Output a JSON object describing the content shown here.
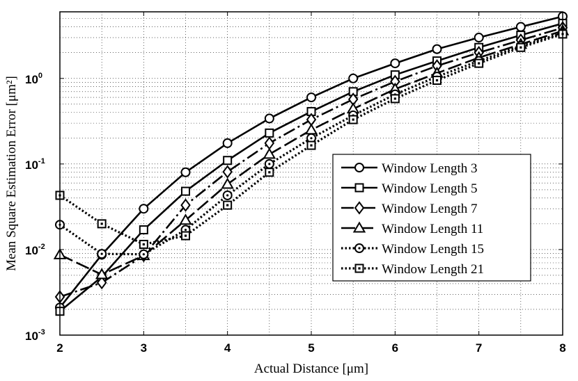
{
  "chart_data": {
    "type": "line",
    "xlabel": "Actual Distance [μm]",
    "ylabel": "Mean Square Estimation Error [μm²]",
    "y_scale": "log",
    "xlim": [
      2,
      8
    ],
    "ylim": [
      0.001,
      6
    ],
    "grid": true,
    "legend_position": "right",
    "x_ticks": [
      "2",
      "3",
      "4",
      "5",
      "6",
      "7",
      "8"
    ],
    "y_ticks": [
      {
        "base": "10",
        "exp": "-3",
        "value": 0.001
      },
      {
        "base": "10",
        "exp": "-2",
        "value": 0.01
      },
      {
        "base": "10",
        "exp": "-1",
        "value": 0.1
      },
      {
        "base": "10",
        "exp": "0",
        "value": 1
      }
    ],
    "x": [
      2,
      2.5,
      3,
      3.5,
      4,
      4.5,
      5,
      5.5,
      6,
      6.5,
      7,
      7.5,
      8
    ],
    "series": [
      {
        "name": "Window Length 3",
        "marker": "circle",
        "dash": "solid",
        "values": [
          0.0021,
          0.0087,
          0.03,
          0.08,
          0.175,
          0.34,
          0.6,
          1.0,
          1.5,
          2.2,
          3.0,
          4.0,
          5.3
        ]
      },
      {
        "name": "Window Length 5",
        "marker": "square",
        "dash": "solid",
        "values": [
          0.0019,
          0.0048,
          0.017,
          0.048,
          0.11,
          0.23,
          0.41,
          0.7,
          1.1,
          1.6,
          2.3,
          3.2,
          4.4
        ]
      },
      {
        "name": "Window Length 7",
        "marker": "diamond",
        "dash": "dashdot",
        "values": [
          0.0028,
          0.0041,
          0.0085,
          0.033,
          0.081,
          0.175,
          0.33,
          0.57,
          0.92,
          1.4,
          2.0,
          2.8,
          3.9
        ]
      },
      {
        "name": "Window Length 11",
        "marker": "triangle",
        "dash": "longdash",
        "values": [
          0.0087,
          0.0051,
          0.0085,
          0.022,
          0.058,
          0.13,
          0.25,
          0.44,
          0.75,
          1.15,
          1.75,
          2.5,
          3.6
        ]
      },
      {
        "name": "Window Length 15",
        "marker": "circle-dot",
        "dash": "dotted",
        "values": [
          0.0195,
          0.0089,
          0.0088,
          0.017,
          0.043,
          0.1,
          0.2,
          0.37,
          0.65,
          1.05,
          1.6,
          2.4,
          3.4
        ]
      },
      {
        "name": "Window Length 21",
        "marker": "square-dot",
        "dash": "dotted",
        "values": [
          0.043,
          0.02,
          0.0115,
          0.0145,
          0.033,
          0.08,
          0.165,
          0.33,
          0.58,
          0.95,
          1.5,
          2.3,
          3.3
        ]
      }
    ]
  }
}
